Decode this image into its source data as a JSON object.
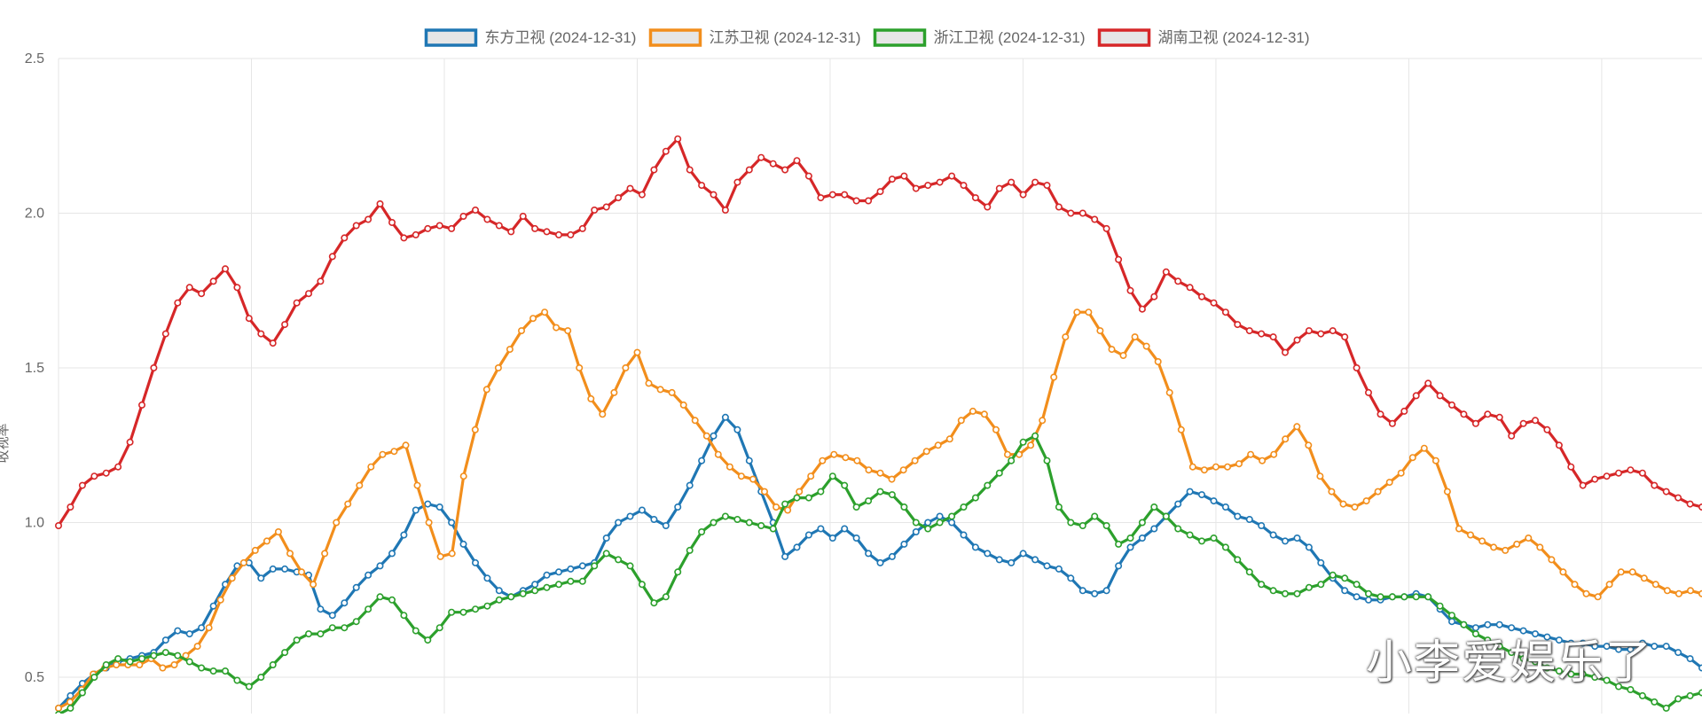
{
  "watermark": "小李爱娱乐了",
  "chart_data": {
    "type": "line",
    "title": "",
    "xlabel": "",
    "ylabel": "收视率",
    "ylim": [
      0.4,
      2.5
    ],
    "yticks": [
      "0.5",
      "1.0",
      "1.5",
      "2.0",
      "2.5"
    ],
    "grid": true,
    "legend_position": "top",
    "series": [
      {
        "name": "东方卫视 (2024-12-31)",
        "color": "#1f77b4",
        "values": [
          0.4,
          0.44,
          0.48,
          0.51,
          0.53,
          0.55,
          0.56,
          0.57,
          0.58,
          0.62,
          0.65,
          0.64,
          0.66,
          0.73,
          0.8,
          0.86,
          0.87,
          0.82,
          0.85,
          0.85,
          0.84,
          0.83,
          0.72,
          0.7,
          0.74,
          0.79,
          0.83,
          0.86,
          0.9,
          0.96,
          1.04,
          1.06,
          1.05,
          1.0,
          0.93,
          0.87,
          0.82,
          0.78,
          0.76,
          0.78,
          0.8,
          0.83,
          0.84,
          0.85,
          0.86,
          0.87,
          0.95,
          1.0,
          1.02,
          1.04,
          1.01,
          0.99,
          1.05,
          1.12,
          1.2,
          1.28,
          1.34,
          1.3,
          1.2,
          1.1,
          1.0,
          0.89,
          0.92,
          0.96,
          0.98,
          0.95,
          0.98,
          0.95,
          0.9,
          0.87,
          0.89,
          0.93,
          0.97,
          1.0,
          1.02,
          1.0,
          0.96,
          0.92,
          0.9,
          0.88,
          0.87,
          0.9,
          0.88,
          0.86,
          0.85,
          0.82,
          0.78,
          0.77,
          0.78,
          0.86,
          0.92,
          0.95,
          0.98,
          1.02,
          1.06,
          1.1,
          1.09,
          1.07,
          1.05,
          1.02,
          1.01,
          0.99,
          0.96,
          0.94,
          0.95,
          0.92,
          0.87,
          0.82,
          0.78,
          0.76,
          0.75,
          0.75,
          0.76,
          0.76,
          0.77,
          0.76,
          0.72,
          0.68,
          0.67,
          0.66,
          0.67,
          0.67,
          0.66,
          0.65,
          0.64,
          0.63,
          0.62,
          0.61,
          0.61,
          0.6,
          0.6,
          0.59,
          0.59,
          0.61,
          0.6,
          0.6,
          0.58,
          0.56,
          0.53
        ]
      },
      {
        "name": "江苏卫视 (2024-12-31)",
        "color": "#f28e1c",
        "values": [
          0.4,
          0.42,
          0.46,
          0.51,
          0.53,
          0.54,
          0.54,
          0.54,
          0.56,
          0.53,
          0.54,
          0.57,
          0.6,
          0.66,
          0.75,
          0.82,
          0.87,
          0.91,
          0.94,
          0.97,
          0.9,
          0.84,
          0.8,
          0.9,
          1.0,
          1.06,
          1.12,
          1.18,
          1.22,
          1.23,
          1.25,
          1.12,
          1.0,
          0.89,
          0.9,
          1.15,
          1.3,
          1.43,
          1.5,
          1.56,
          1.62,
          1.66,
          1.68,
          1.63,
          1.62,
          1.5,
          1.4,
          1.35,
          1.42,
          1.5,
          1.55,
          1.45,
          1.43,
          1.42,
          1.38,
          1.33,
          1.28,
          1.22,
          1.18,
          1.15,
          1.14,
          1.1,
          1.05,
          1.04,
          1.1,
          1.15,
          1.2,
          1.22,
          1.21,
          1.2,
          1.17,
          1.16,
          1.14,
          1.17,
          1.2,
          1.23,
          1.25,
          1.27,
          1.33,
          1.36,
          1.35,
          1.3,
          1.22,
          1.22,
          1.25,
          1.33,
          1.47,
          1.6,
          1.68,
          1.68,
          1.62,
          1.56,
          1.54,
          1.6,
          1.57,
          1.52,
          1.42,
          1.3,
          1.18,
          1.17,
          1.18,
          1.18,
          1.19,
          1.22,
          1.2,
          1.22,
          1.27,
          1.31,
          1.25,
          1.15,
          1.1,
          1.06,
          1.05,
          1.07,
          1.1,
          1.13,
          1.16,
          1.21,
          1.24,
          1.2,
          1.1,
          0.98,
          0.96,
          0.94,
          0.92,
          0.91,
          0.93,
          0.95,
          0.92,
          0.88,
          0.84,
          0.8,
          0.77,
          0.76,
          0.8,
          0.84,
          0.84,
          0.82,
          0.8,
          0.78,
          0.77,
          0.78,
          0.77
        ]
      },
      {
        "name": "浙江卫视 (2024-12-31)",
        "color": "#2ca02c",
        "values": [
          0.38,
          0.4,
          0.45,
          0.5,
          0.54,
          0.56,
          0.55,
          0.56,
          0.57,
          0.58,
          0.57,
          0.55,
          0.53,
          0.52,
          0.52,
          0.49,
          0.47,
          0.5,
          0.54,
          0.58,
          0.62,
          0.64,
          0.64,
          0.66,
          0.66,
          0.68,
          0.72,
          0.76,
          0.75,
          0.7,
          0.65,
          0.62,
          0.66,
          0.71,
          0.71,
          0.72,
          0.73,
          0.75,
          0.76,
          0.77,
          0.78,
          0.79,
          0.8,
          0.81,
          0.81,
          0.86,
          0.9,
          0.88,
          0.86,
          0.8,
          0.74,
          0.76,
          0.84,
          0.91,
          0.97,
          1.0,
          1.02,
          1.01,
          1.0,
          0.99,
          0.98,
          1.06,
          1.08,
          1.08,
          1.1,
          1.15,
          1.12,
          1.05,
          1.07,
          1.1,
          1.09,
          1.05,
          1.0,
          0.98,
          1.0,
          1.02,
          1.05,
          1.08,
          1.12,
          1.16,
          1.2,
          1.26,
          1.28,
          1.2,
          1.05,
          1.0,
          0.99,
          1.02,
          0.99,
          0.93,
          0.95,
          1.0,
          1.05,
          1.02,
          0.98,
          0.96,
          0.94,
          0.95,
          0.92,
          0.88,
          0.84,
          0.8,
          0.78,
          0.77,
          0.77,
          0.79,
          0.8,
          0.83,
          0.82,
          0.8,
          0.77,
          0.76,
          0.76,
          0.76,
          0.76,
          0.76,
          0.73,
          0.7,
          0.67,
          0.64,
          0.62,
          0.6,
          0.58,
          0.56,
          0.55,
          0.53,
          0.52,
          0.51,
          0.51,
          0.5,
          0.49,
          0.47,
          0.46,
          0.44,
          0.42,
          0.4,
          0.43,
          0.44,
          0.45
        ]
      },
      {
        "name": "湖南卫视 (2024-12-31)",
        "color": "#d62728",
        "values": [
          0.99,
          1.05,
          1.12,
          1.15,
          1.16,
          1.18,
          1.26,
          1.38,
          1.5,
          1.61,
          1.71,
          1.76,
          1.74,
          1.78,
          1.82,
          1.76,
          1.66,
          1.61,
          1.58,
          1.64,
          1.71,
          1.74,
          1.78,
          1.86,
          1.92,
          1.96,
          1.98,
          2.03,
          1.97,
          1.92,
          1.93,
          1.95,
          1.96,
          1.95,
          1.99,
          2.01,
          1.98,
          1.96,
          1.94,
          1.99,
          1.95,
          1.94,
          1.93,
          1.93,
          1.95,
          2.01,
          2.02,
          2.05,
          2.08,
          2.06,
          2.14,
          2.2,
          2.24,
          2.14,
          2.09,
          2.06,
          2.01,
          2.1,
          2.14,
          2.18,
          2.16,
          2.14,
          2.17,
          2.12,
          2.05,
          2.06,
          2.06,
          2.04,
          2.04,
          2.07,
          2.11,
          2.12,
          2.08,
          2.09,
          2.1,
          2.12,
          2.09,
          2.05,
          2.02,
          2.08,
          2.1,
          2.06,
          2.1,
          2.09,
          2.02,
          2.0,
          2.0,
          1.98,
          1.95,
          1.85,
          1.75,
          1.69,
          1.73,
          1.81,
          1.78,
          1.76,
          1.73,
          1.71,
          1.68,
          1.64,
          1.62,
          1.61,
          1.6,
          1.55,
          1.59,
          1.62,
          1.61,
          1.62,
          1.6,
          1.5,
          1.42,
          1.35,
          1.32,
          1.36,
          1.41,
          1.45,
          1.41,
          1.38,
          1.35,
          1.32,
          1.35,
          1.34,
          1.28,
          1.32,
          1.33,
          1.3,
          1.25,
          1.18,
          1.12,
          1.14,
          1.15,
          1.16,
          1.17,
          1.16,
          1.12,
          1.1,
          1.08,
          1.06,
          1.05
        ]
      }
    ]
  }
}
